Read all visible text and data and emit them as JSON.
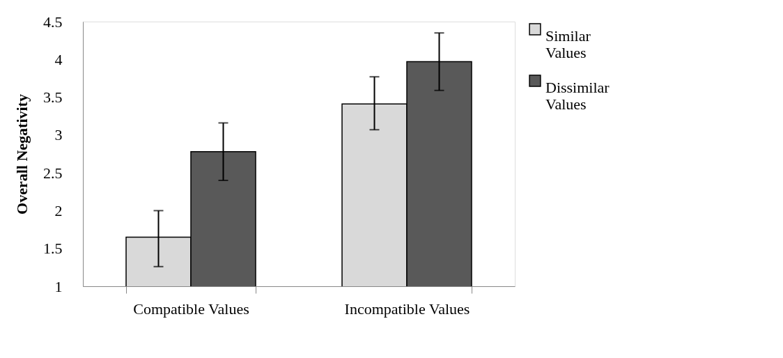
{
  "chart_data": {
    "type": "bar",
    "ylabel": "Overall Negativity",
    "categories": [
      "Compatible Values",
      "Incompatible Values"
    ],
    "series": [
      {
        "name": "Similar Values",
        "color": "#d9d9d9",
        "values": [
          1.65,
          3.41
        ],
        "errors": [
          [
            1.26,
            2.0
          ],
          [
            3.07,
            3.77
          ]
        ]
      },
      {
        "name": "Dissimilar Values",
        "color": "#595959",
        "values": [
          2.78,
          3.97
        ],
        "errors": [
          [
            2.4,
            3.16
          ],
          [
            3.59,
            4.35
          ]
        ]
      }
    ],
    "ylim": [
      1,
      4.5
    ],
    "yticks": [
      1,
      1.5,
      2,
      2.5,
      3,
      3.5,
      4,
      4.5
    ],
    "grid": false,
    "legend": "right"
  }
}
